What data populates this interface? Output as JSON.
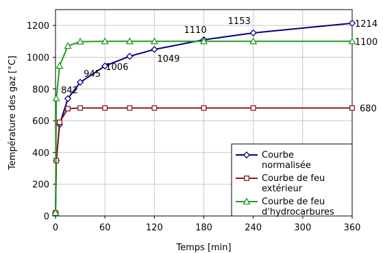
{
  "chart_data": {
    "type": "line",
    "xlabel": "Temps [min]",
    "ylabel": "Température des gaz [°C]",
    "xlim": [
      0,
      360
    ],
    "ylim": [
      0,
      1300
    ],
    "xticks": [
      0,
      60,
      120,
      180,
      240,
      300,
      360
    ],
    "yticks": [
      0,
      200,
      400,
      600,
      800,
      1000,
      1200
    ],
    "grid": true,
    "legend_position": "bottom-right",
    "series": [
      {
        "name": "Courbe normalisée",
        "legend_lines": [
          "Courbe",
          "normalisée"
        ],
        "color": "#000080",
        "marker": "diamond",
        "x": [
          0,
          1,
          5,
          15,
          30,
          60,
          90,
          120,
          180,
          240,
          360
        ],
        "y": [
          20,
          349,
          576,
          739,
          842,
          945,
          1006,
          1049,
          1110,
          1153,
          1214
        ]
      },
      {
        "name": "Courbe de feu extérieur",
        "legend_lines": [
          "Courbe de feu",
          "extérieur"
        ],
        "color": "#8b1a1a",
        "marker": "square",
        "x": [
          0,
          1,
          5,
          15,
          30,
          60,
          90,
          120,
          180,
          240,
          360
        ],
        "y": [
          20,
          349,
          590,
          676,
          680,
          680,
          680,
          680,
          680,
          680,
          680
        ]
      },
      {
        "name": "Courbe de feu d'hydrocarbures",
        "legend_lines": [
          "Courbe de feu",
          "d'hydrocarbures"
        ],
        "color": "#1f9a1f",
        "marker": "triangle",
        "x": [
          0,
          1,
          5,
          15,
          30,
          60,
          90,
          120,
          180,
          240,
          360
        ],
        "y": [
          20,
          741,
          946,
          1071,
          1098,
          1100,
          1100,
          1100,
          1100,
          1100,
          1100
        ]
      }
    ],
    "annotations": [
      {
        "text": "842",
        "x": 30,
        "y": 842
      },
      {
        "text": "945",
        "x": 60,
        "y": 945
      },
      {
        "text": "1006",
        "x": 90,
        "y": 1006
      },
      {
        "text": "1049",
        "x": 120,
        "y": 1049
      },
      {
        "text": "1110",
        "x": 180,
        "y": 1110
      },
      {
        "text": "1153",
        "x": 240,
        "y": 1153
      },
      {
        "text": "1214",
        "x": 360,
        "y": 1214
      },
      {
        "text": "1100",
        "x": 360,
        "y": 1100
      },
      {
        "text": "680",
        "x": 360,
        "y": 680
      }
    ]
  }
}
